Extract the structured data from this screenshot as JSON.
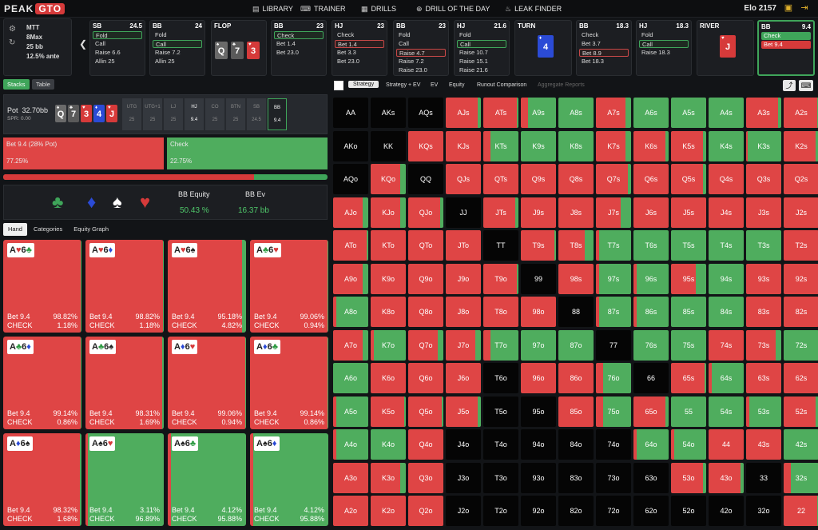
{
  "app": {
    "logo_peak": "PEAK",
    "logo_gto": "GTO",
    "elo_label": "Elo",
    "elo_value": "2157"
  },
  "nav": [
    {
      "label": "LIBRARY",
      "icon": "book-icon"
    },
    {
      "label": "TRAINER",
      "icon": "gamepad-icon"
    },
    {
      "label": "DRILLS",
      "icon": "grid-icon"
    },
    {
      "label": "DRILL OF THE DAY",
      "icon": "plus-circle-icon"
    },
    {
      "label": "LEAK FINDER",
      "icon": "flame-icon"
    }
  ],
  "info": {
    "format": "MTT",
    "players": "8Max",
    "stack": "25 bb",
    "ante": "12.5% ante"
  },
  "seats": [
    {
      "pos": "SB",
      "stack": "24.5",
      "opts": [
        "Fold",
        "Call",
        "Raise 6.6",
        "Allin 25"
      ],
      "sel": 0
    },
    {
      "pos": "BB",
      "stack": "24",
      "opts": [
        "Fold",
        "Call",
        "Raise 7.2",
        "Allin 25"
      ],
      "sel": 1
    },
    {
      "pos": "BB",
      "stack": "23",
      "opts": [
        "Check",
        "Bet 1.4",
        "Bet 23.0"
      ],
      "sel": 0
    },
    {
      "pos": "HJ",
      "stack": "23",
      "opts": [
        "Check",
        "Bet 1.4",
        "Bet 3.3",
        "Bet 23.0"
      ],
      "selr": 1
    },
    {
      "pos": "BB",
      "stack": "23",
      "opts": [
        "Fold",
        "Call",
        "Raise 4.7",
        "Raise 7.2",
        "Raise 23.0"
      ],
      "selr": 2
    },
    {
      "pos": "HJ",
      "stack": "21.6",
      "opts": [
        "Fold",
        "Call",
        "Raise 10.7",
        "Raise 15.1",
        "Raise 21.6"
      ],
      "sel": 1
    },
    {
      "pos": "BB",
      "stack": "18.3",
      "opts": [
        "Check",
        "Bet 3.7",
        "Bet 8.9",
        "Bet 18.3"
      ],
      "selr": 2
    },
    {
      "pos": "HJ",
      "stack": "18.3",
      "opts": [
        "Fold",
        "Call",
        "Raise 18.3"
      ],
      "sel": 1
    },
    {
      "pos": "BB",
      "stack": "9.4",
      "opts": [
        "Check",
        "Bet 9.4"
      ],
      "active": true
    }
  ],
  "street_labels": {
    "flop": "FLOP",
    "turn": "TURN",
    "river": "RIVER"
  },
  "flop_cards": [
    {
      "r": "Q",
      "s": "♠",
      "c": "#6a6a6a"
    },
    {
      "r": "7",
      "s": "♣",
      "c": "#5a5a5a"
    },
    {
      "r": "3",
      "s": "♥",
      "c": "#d63a3a"
    }
  ],
  "turn_card": {
    "r": "4",
    "s": "♦",
    "c": "#2b4bd6"
  },
  "river_card": {
    "r": "J",
    "s": "♥",
    "c": "#d63a3a"
  },
  "view_tabs": [
    "Stacks",
    "Table"
  ],
  "board": {
    "pot_label": "Pot",
    "pot": "32.70bb",
    "spr": "SPR: 0.00",
    "positions": [
      {
        "p": "UTG",
        "v": "25"
      },
      {
        "p": "UTG+1",
        "v": "25"
      },
      {
        "p": "LJ",
        "v": "25"
      },
      {
        "p": "HJ",
        "v": "9.4"
      },
      {
        "p": "CO",
        "v": "25"
      },
      {
        "p": "BTN",
        "v": "25"
      },
      {
        "p": "SB",
        "v": "24.5"
      },
      {
        "p": "BB",
        "v": "9.4"
      }
    ]
  },
  "actions": {
    "bet_label": "Bet 9.4 (28% Pot)",
    "bet_pct": "77.25%",
    "bet_frac": 0.7725,
    "check_label": "Check",
    "check_pct": "22.75%"
  },
  "equity": {
    "eq_label": "BB Equity",
    "eq_value": "50.43 %",
    "ev_label": "BB Ev",
    "ev_value": "16.37 bb"
  },
  "hand_tabs": [
    "Hand",
    "Categories",
    "Equity Graph"
  ],
  "hands": [
    {
      "c1": "A♥",
      "c2": "6♣",
      "bet": "Bet 9.4",
      "bp": "98.82%",
      "chk": "CHECK",
      "cp": "1.18%",
      "f": 0.9882
    },
    {
      "c1": "A♥",
      "c2": "6♦",
      "bet": "Bet 9.4",
      "bp": "98.82%",
      "chk": "CHECK",
      "cp": "1.18%",
      "f": 0.9882
    },
    {
      "c1": "A♥",
      "c2": "6♠",
      "bet": "Bet 9.4",
      "bp": "95.18%",
      "chk": "CHECK",
      "cp": "4.82%",
      "f": 0.9518
    },
    {
      "c1": "A♣",
      "c2": "6♥",
      "bet": "Bet 9.4",
      "bp": "99.06%",
      "chk": "CHECK",
      "cp": "0.94%",
      "f": 0.9906
    },
    {
      "c1": "A♣",
      "c2": "6♦",
      "bet": "Bet 9.4",
      "bp": "99.14%",
      "chk": "CHECK",
      "cp": "0.86%",
      "f": 0.9914
    },
    {
      "c1": "A♣",
      "c2": "6♠",
      "bet": "Bet 9.4",
      "bp": "98.31%",
      "chk": "CHECK",
      "cp": "1.69%",
      "f": 0.9831
    },
    {
      "c1": "A♦",
      "c2": "6♥",
      "bet": "Bet 9.4",
      "bp": "99.06%",
      "chk": "CHECK",
      "cp": "0.94%",
      "f": 0.9906
    },
    {
      "c1": "A♦",
      "c2": "6♣",
      "bet": "Bet 9.4",
      "bp": "99.14%",
      "chk": "CHECK",
      "cp": "0.86%",
      "f": 0.9914
    },
    {
      "c1": "A♦",
      "c2": "6♠",
      "bet": "Bet 9.4",
      "bp": "98.32%",
      "chk": "CHECK",
      "cp": "1.68%",
      "f": 0.9832
    },
    {
      "c1": "A♠",
      "c2": "6♥",
      "bet": "Bet 9.4",
      "bp": "3.11%",
      "chk": "CHECK",
      "cp": "96.89%",
      "f": 0.0311
    },
    {
      "c1": "A♠",
      "c2": "6♣",
      "bet": "Bet 9.4",
      "bp": "4.12%",
      "chk": "CHECK",
      "cp": "95.88%",
      "f": 0.0412
    },
    {
      "c1": "A♠",
      "c2": "6♦",
      "bet": "Bet 9.4",
      "bp": "4.12%",
      "chk": "CHECK",
      "cp": "95.88%",
      "f": 0.0412
    }
  ],
  "range_tabs": [
    "Strategy",
    "Strategy + EV",
    "EV",
    "Equity",
    "Runout Comparison",
    "Aggregate Reports"
  ],
  "colors": {
    "bet": "#df4545",
    "check": "#4fad5e",
    "bg": "#121417"
  },
  "grid": [
    [
      "AA:x",
      "AKs:x",
      "AQs:x",
      "AJs:0.9",
      "ATs:0.95",
      "A9s:0.2",
      "A8s:0",
      "A7s:0.85",
      "A6s:0",
      "A5s:0",
      "A4s:0",
      "A3s:0.9",
      "A2s:0.95"
    ],
    [
      "AKo:x",
      "KK:x",
      "KQs:1",
      "KJs:1",
      "KTs:0.2",
      "K9s:0",
      "K8s:0",
      "K7s:0.85",
      "K6s:0.9",
      "K5s:0.9",
      "K4s:0",
      "K3s:0.05",
      "K2s:0.9"
    ],
    [
      "AQo:x",
      "KQo:0.85",
      "QQ:x",
      "QJs:1",
      "QTs:1",
      "Q9s:1",
      "Q8s:1",
      "Q7s:0.9",
      "Q6s:1",
      "Q5s:0.9",
      "Q4s:1",
      "Q3s:1",
      "Q2s:1"
    ],
    [
      "AJo:0.85",
      "KJo:0.85",
      "QJo:0.9",
      "JJ:x",
      "JTs:0.9",
      "J9s:1",
      "J8s:1",
      "J7s:0.7",
      "J6s:1",
      "J5s:1",
      "J4s:1",
      "J3s:1",
      "J2s:1"
    ],
    [
      "ATo:0.95",
      "KTo:1",
      "QTo:1",
      "JTo:1",
      "TT:x",
      "T9s:0.95",
      "T8s:0.75",
      "T7s:0.1",
      "T6s:0",
      "T5s:0",
      "T4s:0",
      "T3s:0",
      "T2s:1"
    ],
    [
      "A9o:0.85",
      "K9o:1",
      "Q9o:1",
      "J9o:1",
      "T9o:0.95",
      "99:x",
      "98s:1",
      "97s:0.1",
      "96s:0.1",
      "95s:0.7",
      "94s:0",
      "93s:1",
      "92s:1"
    ],
    [
      "A8o:0.1",
      "K8o:1",
      "Q8o:1",
      "J8o:1",
      "T8o:1",
      "98o:1",
      "88:x",
      "87s:0.1",
      "86s:0.1",
      "85s:0",
      "84s:0",
      "83s:1",
      "82s:1"
    ],
    [
      "A7o:0.85",
      "K7o:0.1",
      "Q7o:0.85",
      "J7o:0.85",
      "T7o:0.2",
      "97o:0",
      "87o:0",
      "77:x",
      "76s:0",
      "75s:0",
      "74s:1",
      "73s:0.85",
      "72s:0"
    ],
    [
      "A6o:0",
      "K6o:1",
      "Q6o:1",
      "J6o:1",
      "T6o:x",
      "96o:1",
      "86o:1",
      "76o:0.2",
      "66:x",
      "65s:0.95",
      "64s:0.1",
      "63s:1",
      "62s:1"
    ],
    [
      "A5o:0.1",
      "K5o:0.95",
      "Q5o:0.95",
      "J5o:0.9",
      "T5o:x",
      "95o:x",
      "85o:1",
      "75o:0.2",
      "65o:0.9",
      "55:0",
      "54s:0",
      "53s:0.1",
      "52s:0.9"
    ],
    [
      "A4o:0.1",
      "K4o:0",
      "Q4o:1",
      "J4o:x",
      "T4o:x",
      "94o:x",
      "84o:x",
      "74o:x",
      "64o:0.1",
      "54o:0.1",
      "44:1",
      "43s:1",
      "42s:0"
    ],
    [
      "A3o:1",
      "K3o:0.85",
      "Q3o:1",
      "J3o:x",
      "T3o:x",
      "93o:x",
      "83o:x",
      "73o:x",
      "63o:x",
      "53o:0.9",
      "43o:0.9",
      "33:x",
      "32s:0.2"
    ],
    [
      "A2o:1",
      "K2o:1",
      "Q2o:1",
      "J2o:x",
      "T2o:x",
      "92o:x",
      "82o:x",
      "72o:x",
      "62o:x",
      "52o:x",
      "42o:x",
      "32o:x",
      "22:0.95"
    ]
  ]
}
